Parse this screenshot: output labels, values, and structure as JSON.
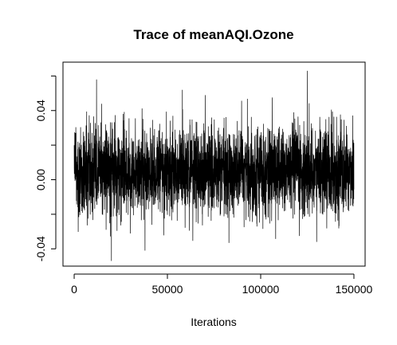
{
  "chart_data": {
    "type": "line",
    "title": "Trace of meanAQI.Ozone",
    "xlabel": "Iterations",
    "ylabel": "",
    "xlim": [
      -6000,
      156000
    ],
    "ylim": [
      -0.05,
      0.068
    ],
    "x_ticks": [
      0,
      50000,
      100000,
      150000
    ],
    "x_tick_labels": [
      "0",
      "50000",
      "100000",
      "150000"
    ],
    "y_ticks": [
      -0.04,
      -0.02,
      0.0,
      0.02,
      0.04,
      0.06
    ],
    "y_tick_labels": [
      "-0.04",
      "",
      "0.00",
      "",
      "0.04",
      ""
    ],
    "grid": false,
    "legend": "none",
    "series": [
      {
        "x_start": 0,
        "x_end": 150000,
        "mean": 0.005,
        "typical_range": [
          -0.02,
          0.03
        ],
        "extreme_range": [
          -0.047,
          0.063
        ],
        "color": "#000000"
      }
    ]
  }
}
